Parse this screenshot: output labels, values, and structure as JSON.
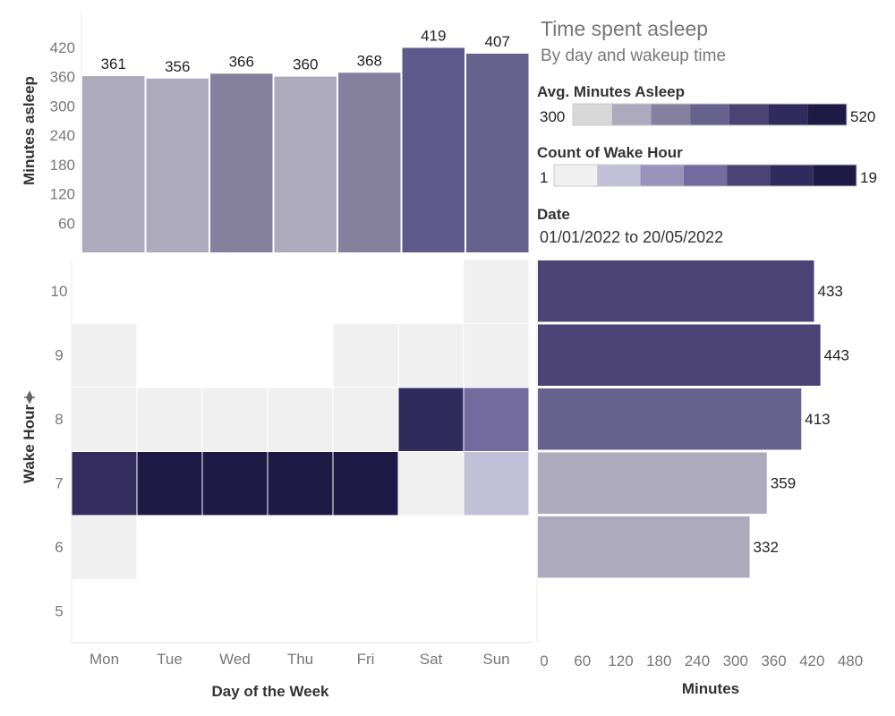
{
  "title": "Time spent asleep",
  "subtitle": "By day and wakeup time",
  "chart_data": [
    {
      "type": "bar",
      "categories": [
        "Mon",
        "Tue",
        "Wed",
        "Thu",
        "Fri",
        "Sat",
        "Sun"
      ],
      "values": [
        361,
        356,
        366,
        360,
        368,
        419,
        407
      ],
      "ylabel": "Minutes asleep",
      "yticks": [
        60,
        120,
        180,
        240,
        300,
        360,
        420
      ],
      "ylim": [
        0,
        440
      ],
      "colors": [
        "#adaabd",
        "#adaabd",
        "#86809f",
        "#adaabd",
        "#86809f",
        "#5f588a",
        "#67618d"
      ]
    },
    {
      "type": "heatmap",
      "x": [
        "Mon",
        "Tue",
        "Wed",
        "Thu",
        "Fri",
        "Sat",
        "Sun"
      ],
      "y": [
        10,
        9,
        8,
        7,
        6,
        5
      ],
      "xlabel": "Day of the Week",
      "ylabel": "Wake Hour",
      "cells": [
        {
          "day": "Sun",
          "hour": 10,
          "color": "#f0f0f0"
        },
        {
          "day": "Mon",
          "hour": 9,
          "color": "#f0f0f0"
        },
        {
          "day": "Fri",
          "hour": 9,
          "color": "#f0f0f0"
        },
        {
          "day": "Sat",
          "hour": 9,
          "color": "#f0f0f0"
        },
        {
          "day": "Sun",
          "hour": 9,
          "color": "#f0f0f0"
        },
        {
          "day": "Mon",
          "hour": 8,
          "color": "#f0f0f0"
        },
        {
          "day": "Tue",
          "hour": 8,
          "color": "#f0f0f0"
        },
        {
          "day": "Wed",
          "hour": 8,
          "color": "#f0f0f0"
        },
        {
          "day": "Thu",
          "hour": 8,
          "color": "#f0f0f0"
        },
        {
          "day": "Fri",
          "hour": 8,
          "color": "#f0f0f0"
        },
        {
          "day": "Sat",
          "hour": 8,
          "color": "#312a5c"
        },
        {
          "day": "Sun",
          "hour": 8,
          "color": "#736a9d"
        },
        {
          "day": "Mon",
          "hour": 7,
          "color": "#342c5e"
        },
        {
          "day": "Tue",
          "hour": 7,
          "color": "#1f1a45"
        },
        {
          "day": "Wed",
          "hour": 7,
          "color": "#1f1a45"
        },
        {
          "day": "Thu",
          "hour": 7,
          "color": "#1f1a45"
        },
        {
          "day": "Fri",
          "hour": 7,
          "color": "#1f1a45"
        },
        {
          "day": "Sat",
          "hour": 7,
          "color": "#f0f0f0"
        },
        {
          "day": "Sun",
          "hour": 7,
          "color": "#c2bfd8"
        },
        {
          "day": "Mon",
          "hour": 6,
          "color": "#f0f0f0"
        }
      ]
    },
    {
      "type": "bar",
      "orientation": "horizontal",
      "categories": [
        10,
        9,
        8,
        7,
        6
      ],
      "values": [
        433,
        443,
        413,
        359,
        332
      ],
      "xlabel": "Minutes",
      "xticks": [
        0,
        60,
        120,
        180,
        240,
        300,
        360,
        420,
        480
      ],
      "xlim": [
        0,
        480
      ],
      "colors": [
        "#4b4373",
        "#4b4373",
        "#67618d",
        "#adaabd",
        "#adaabd"
      ]
    }
  ],
  "legends": {
    "avg_minutes": {
      "title": "Avg. Minutes Asleep",
      "min": "300",
      "max": "520",
      "colors": [
        "#d8d8d8",
        "#adaabd",
        "#86809f",
        "#67618d",
        "#4b4373",
        "#312a5c",
        "#1f1a45"
      ]
    },
    "count_wake": {
      "title": "Count of Wake Hour",
      "min": "1",
      "max": "19",
      "colors": [
        "#f0f0f0",
        "#c2bfd8",
        "#9a94bd",
        "#736a9d",
        "#4b4373",
        "#312a5c",
        "#1f1a45"
      ]
    }
  },
  "date_filter": {
    "title": "Date",
    "value": "01/01/2022 to 20/05/2022"
  }
}
